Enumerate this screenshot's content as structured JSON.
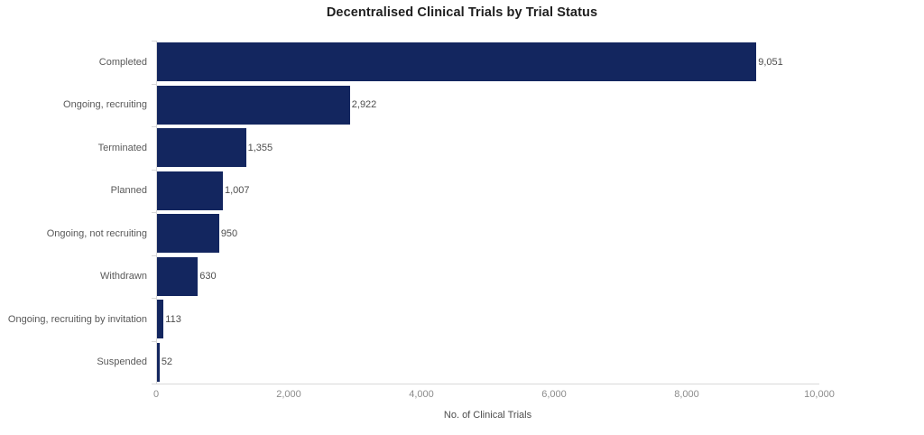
{
  "chart_data": {
    "type": "bar",
    "orientation": "horizontal",
    "title": "Decentralised Clinical Trials by Trial Status",
    "categories": [
      "Completed",
      "Ongoing, recruiting",
      "Terminated",
      "Planned",
      "Ongoing, not recruiting",
      "Withdrawn",
      "Ongoing, recruiting by invitation",
      "Suspended"
    ],
    "values": [
      9051,
      2922,
      1355,
      1007,
      950,
      630,
      113,
      52
    ],
    "value_labels": [
      "9,051",
      "2,922",
      "1,355",
      "1,007",
      "950",
      "630",
      "113",
      "52"
    ],
    "xlabel": "No. of Clinical Trials",
    "ylabel": "",
    "xlim": [
      0,
      10000
    ],
    "x_ticks": [
      0,
      2000,
      4000,
      6000,
      8000,
      10000
    ],
    "x_tick_labels": [
      "0",
      "2,000",
      "4,000",
      "6,000",
      "8,000",
      "10,000"
    ],
    "grid": false,
    "legend": false,
    "colors": {
      "bar": "#13265f",
      "axis_line": "#d9d9d9",
      "category_label": "#595959",
      "value_label": "#4d4d4d",
      "tick_label": "#8c8c8c",
      "title": "#1f1f1f"
    }
  }
}
